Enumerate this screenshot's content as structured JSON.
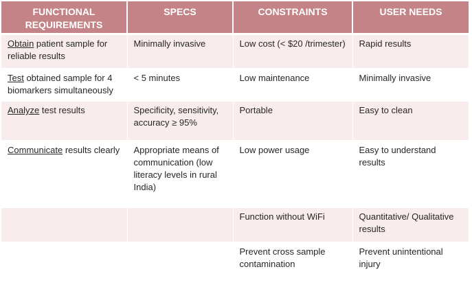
{
  "headers": {
    "functional": "FUNCTIONAL REQUIREMENTS",
    "specs": "SPECS",
    "constraints": "CONSTRAINTS",
    "user_needs": "USER NEEDS"
  },
  "rows": [
    {
      "functional_verb": "Obtain",
      "functional_rest": " patient sample for reliable results",
      "specs": "Minimally invasive",
      "constraints": "Low cost (< $20 /trimester)",
      "user_needs": "Rapid results"
    },
    {
      "functional_verb": "Test",
      "functional_rest": " obtained sample for 4 biomarkers simultaneously",
      "specs": "< 5 minutes",
      "constraints": "Low maintenance",
      "user_needs": "Minimally invasive"
    },
    {
      "functional_verb": "Analyze",
      "functional_rest": " test results",
      "specs": "Specificity, sensitivity, accuracy ≥ 95%",
      "constraints": "Portable",
      "user_needs": "Easy to clean"
    },
    {
      "functional_verb": "Communicate",
      "functional_rest": " results clearly",
      "specs": "Appropriate means of communication (low literacy levels in rural India)",
      "constraints": "Low power usage",
      "user_needs": "Easy to understand results"
    },
    {
      "functional_verb": "",
      "functional_rest": "",
      "specs": "",
      "constraints": "Function without WiFi",
      "user_needs": "Quantitative/ Qualitative results"
    },
    {
      "functional_verb": "",
      "functional_rest": "",
      "specs": "",
      "constraints": "Prevent cross sample contamination",
      "user_needs": "Prevent unintentional injury"
    }
  ],
  "colors": {
    "header_bg": "#c48487",
    "header_text": "#ffffff",
    "odd_row_bg": "#f8eced",
    "even_row_bg": "#ffffff"
  }
}
